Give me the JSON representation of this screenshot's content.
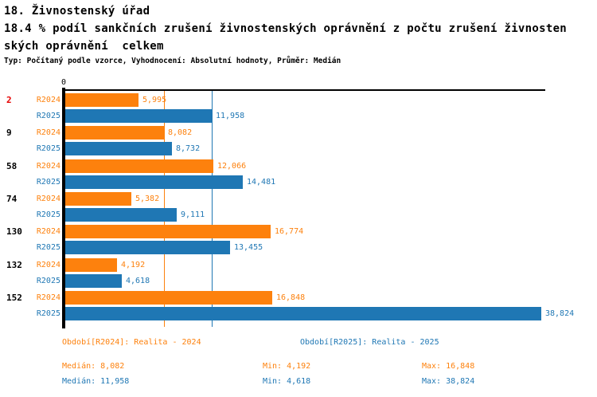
{
  "header": {
    "title_line1": "18. Živnostenský úřad",
    "title_line2": "18.4 % podíl sankčních zrušení živnostenských oprávnění z počtu zrušení živnosten",
    "title_line3": "ských oprávnění  celkem",
    "meta": "Typ: Počítaný podle vzorce, Vyhodnocení: Absolutní hodnoty, Průměr: Medián"
  },
  "colors": {
    "series_2024": "#fd810d",
    "series_2025": "#1f77b4",
    "highlight_red": "#e60000",
    "category_default": "#000000",
    "axis": "#000000"
  },
  "chart_data": {
    "type": "bar",
    "orientation": "horizontal",
    "title": "18.4 % podíl sankčních zrušení živnostenských oprávnění z počtu zrušení živnostenských oprávnění celkem",
    "categories": [
      "2",
      "9",
      "58",
      "74",
      "130",
      "132",
      "152"
    ],
    "highlighted_category": "2",
    "series": [
      {
        "name": "R2024",
        "color": "#fd810d",
        "values": [
          5995,
          8082,
          12066,
          5382,
          16774,
          4192,
          16848
        ]
      },
      {
        "name": "R2025",
        "color": "#1f77b4",
        "values": [
          11958,
          8732,
          14481,
          9111,
          13455,
          4618,
          38824
        ]
      }
    ],
    "axis": {
      "zero_label": "0",
      "xmin": 0,
      "xmax": 38824,
      "grid": false
    },
    "median_lines": [
      {
        "series": "R2024",
        "value": 8082,
        "color": "#fd810d"
      },
      {
        "series": "R2025",
        "value": 11958,
        "color": "#1f77b4"
      }
    ],
    "legend_position": "bottom"
  },
  "footer": {
    "legend": [
      {
        "label": "Období[R2024]: Realita - 2024",
        "color": "#fd810d"
      },
      {
        "label": "Období[R2025]: Realita - 2025",
        "color": "#1f77b4"
      }
    ],
    "stats": [
      {
        "median": "Medián: 8,082",
        "min": "Min: 4,192",
        "max": "Max: 16,848",
        "color": "#fd810d"
      },
      {
        "median": "Medián: 11,958",
        "min": "Min: 4,618",
        "max": "Max: 38,824",
        "color": "#1f77b4"
      }
    ]
  }
}
